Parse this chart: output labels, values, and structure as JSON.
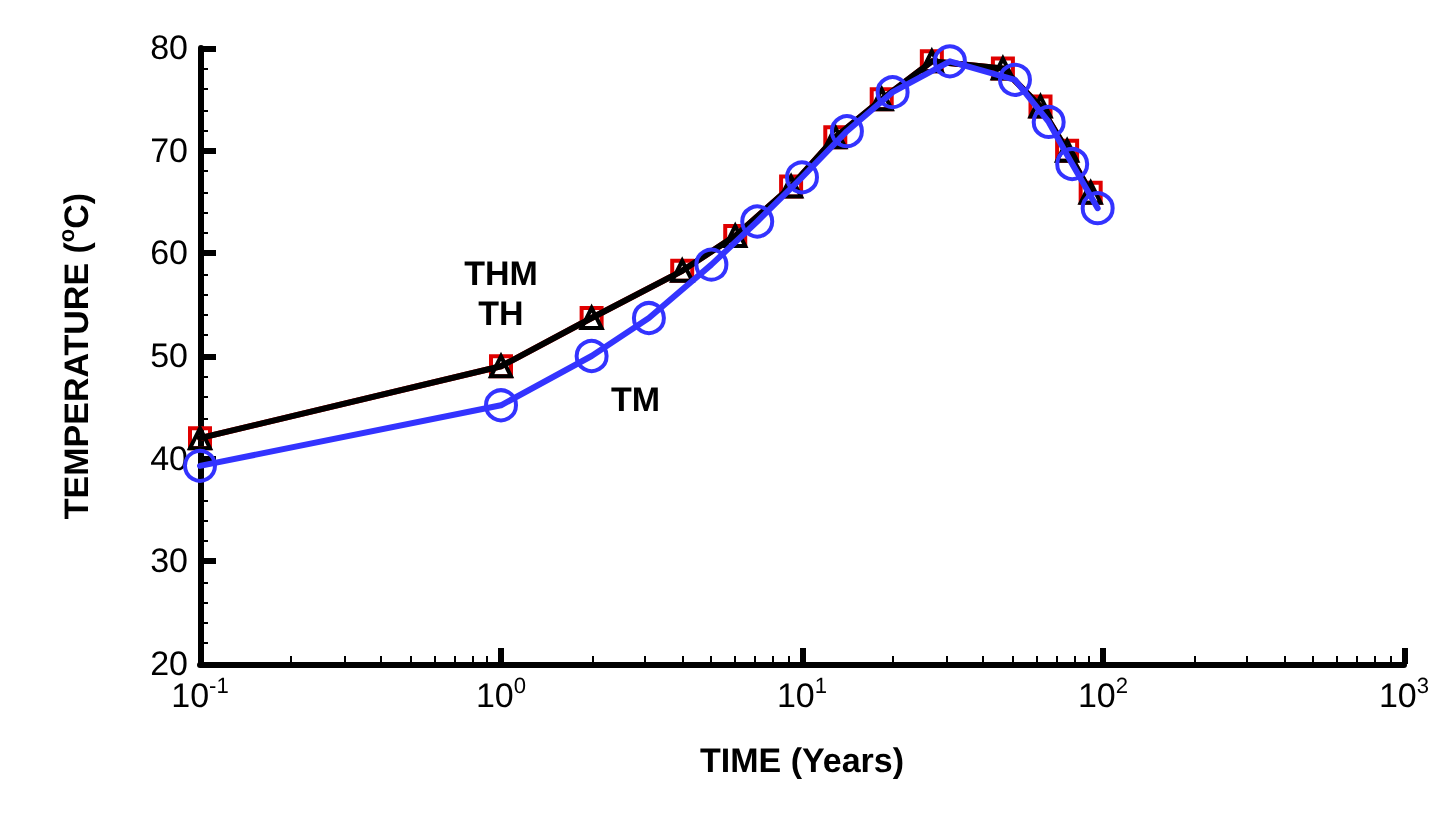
{
  "chart_data": {
    "type": "line",
    "xlabel": "TIME (Years)",
    "ylabel": "TEMPERATURE ($^{o}$C)",
    "log": "x",
    "xlim": [
      0.1,
      1000
    ],
    "xticks": [
      {
        "value": 0.1,
        "label": "10$^{-1}$"
      },
      {
        "value": 1,
        "label": "10$^{0}$"
      },
      {
        "value": 10,
        "label": "10$^{1}$"
      },
      {
        "value": 100,
        "label": "10$^{2}$"
      },
      {
        "value": 1000,
        "label": "10$^{3}$"
      }
    ],
    "ylim": [
      20,
      80
    ],
    "yticks": [
      20,
      30,
      40,
      50,
      60,
      70,
      80
    ],
    "grid": false,
    "legend": false,
    "series": [
      {
        "name": "THM",
        "color": "#e00000",
        "marker": "square",
        "x": [
          0.1,
          1,
          2,
          4,
          6,
          9.2,
          12.9,
          18.4,
          27,
          46.5,
          62,
          76,
          91
        ],
        "values": [
          42,
          49,
          53.7,
          58.3,
          61.7,
          66.5,
          71.3,
          75,
          78.7,
          78,
          74.3,
          70,
          65.9
        ]
      },
      {
        "name": "TH",
        "color": "#000000",
        "marker": "triangle",
        "x": [
          0.1,
          1,
          2,
          4,
          6,
          9.2,
          12.9,
          18.4,
          27,
          46.5,
          62,
          76,
          91
        ],
        "values": [
          42,
          49,
          53.7,
          58.3,
          61.7,
          66.5,
          71.3,
          75,
          78.7,
          78,
          74.3,
          70,
          65.9
        ]
      },
      {
        "name": "TM",
        "color": "#3333ff",
        "marker": "circle",
        "x": [
          0.1,
          1,
          2,
          3.1,
          5,
          7.1,
          10,
          14.1,
          20,
          31,
          51,
          66,
          79,
          96
        ],
        "values": [
          39.3,
          45.2,
          50,
          53.7,
          58.9,
          63.1,
          67.4,
          71.9,
          75.7,
          78.7,
          76.9,
          72.8,
          68.7,
          64.4
        ]
      }
    ]
  }
}
